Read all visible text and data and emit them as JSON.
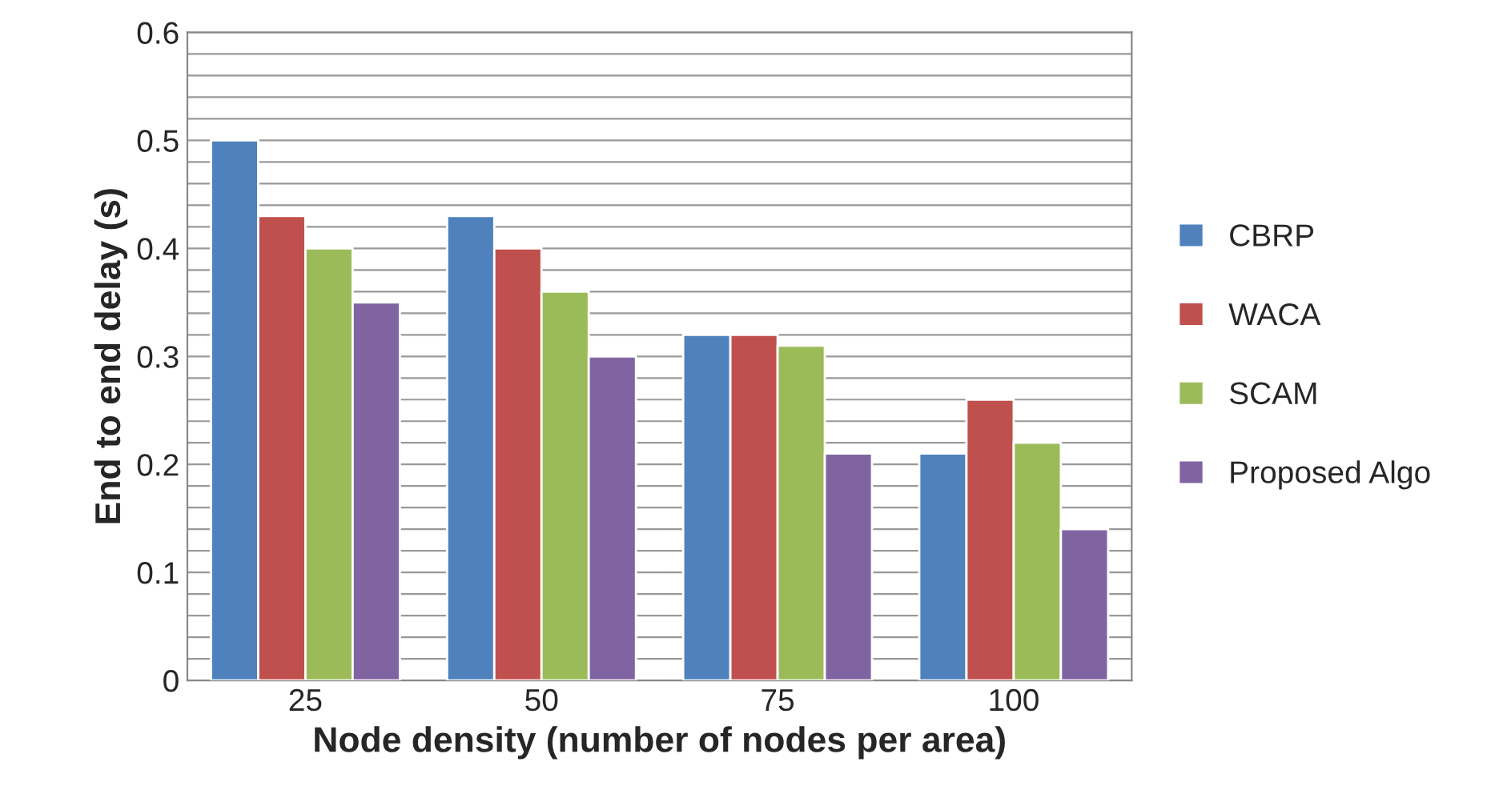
{
  "chart_data": {
    "type": "bar",
    "xlabel": "Node density (number of nodes per area)",
    "ylabel": "End to end delay (s)",
    "categories": [
      "25",
      "50",
      "75",
      "100"
    ],
    "series": [
      {
        "name": "CBRP",
        "color": "#4f81bd",
        "values": [
          0.5,
          0.43,
          0.32,
          0.21
        ]
      },
      {
        "name": "WACA",
        "color": "#c0504d",
        "values": [
          0.43,
          0.4,
          0.32,
          0.26
        ]
      },
      {
        "name": "SCAM",
        "color": "#9bbb59",
        "values": [
          0.4,
          0.36,
          0.31,
          0.22
        ]
      },
      {
        "name": "Proposed Algo",
        "color": "#8064a2",
        "values": [
          0.35,
          0.3,
          0.21,
          0.14
        ]
      }
    ],
    "ylim": [
      0,
      0.6
    ],
    "yticks": [
      {
        "value": 0,
        "label": "0"
      },
      {
        "value": 0.02,
        "label": null
      },
      {
        "value": 0.04,
        "label": null
      },
      {
        "value": 0.06,
        "label": null
      },
      {
        "value": 0.08,
        "label": null
      },
      0.1,
      {
        "value": 0.12,
        "label": null
      },
      {
        "value": 0.14,
        "label": null
      },
      {
        "value": 0.16,
        "label": null
      },
      {
        "value": 0.18,
        "label": null
      },
      0.2,
      {
        "value": 0.22,
        "label": null
      },
      {
        "value": 0.24,
        "label": null
      },
      {
        "value": 0.26,
        "label": null
      },
      {
        "value": 0.28,
        "label": null
      },
      0.3,
      {
        "value": 0.32,
        "label": null
      },
      {
        "value": 0.34,
        "label": null
      },
      {
        "value": 0.36,
        "label": null
      },
      {
        "value": 0.38,
        "label": null
      },
      0.4,
      {
        "value": 0.42,
        "label": null
      },
      {
        "value": 0.44,
        "label": null
      },
      {
        "value": 0.46,
        "label": null
      },
      {
        "value": 0.48,
        "label": null
      },
      0.5,
      {
        "value": 0.52,
        "label": null
      },
      {
        "value": 0.54,
        "label": null
      },
      {
        "value": 0.56,
        "label": null
      },
      {
        "value": 0.58,
        "label": null
      },
      0.6
    ],
    "grid": "y",
    "legend": "right"
  }
}
